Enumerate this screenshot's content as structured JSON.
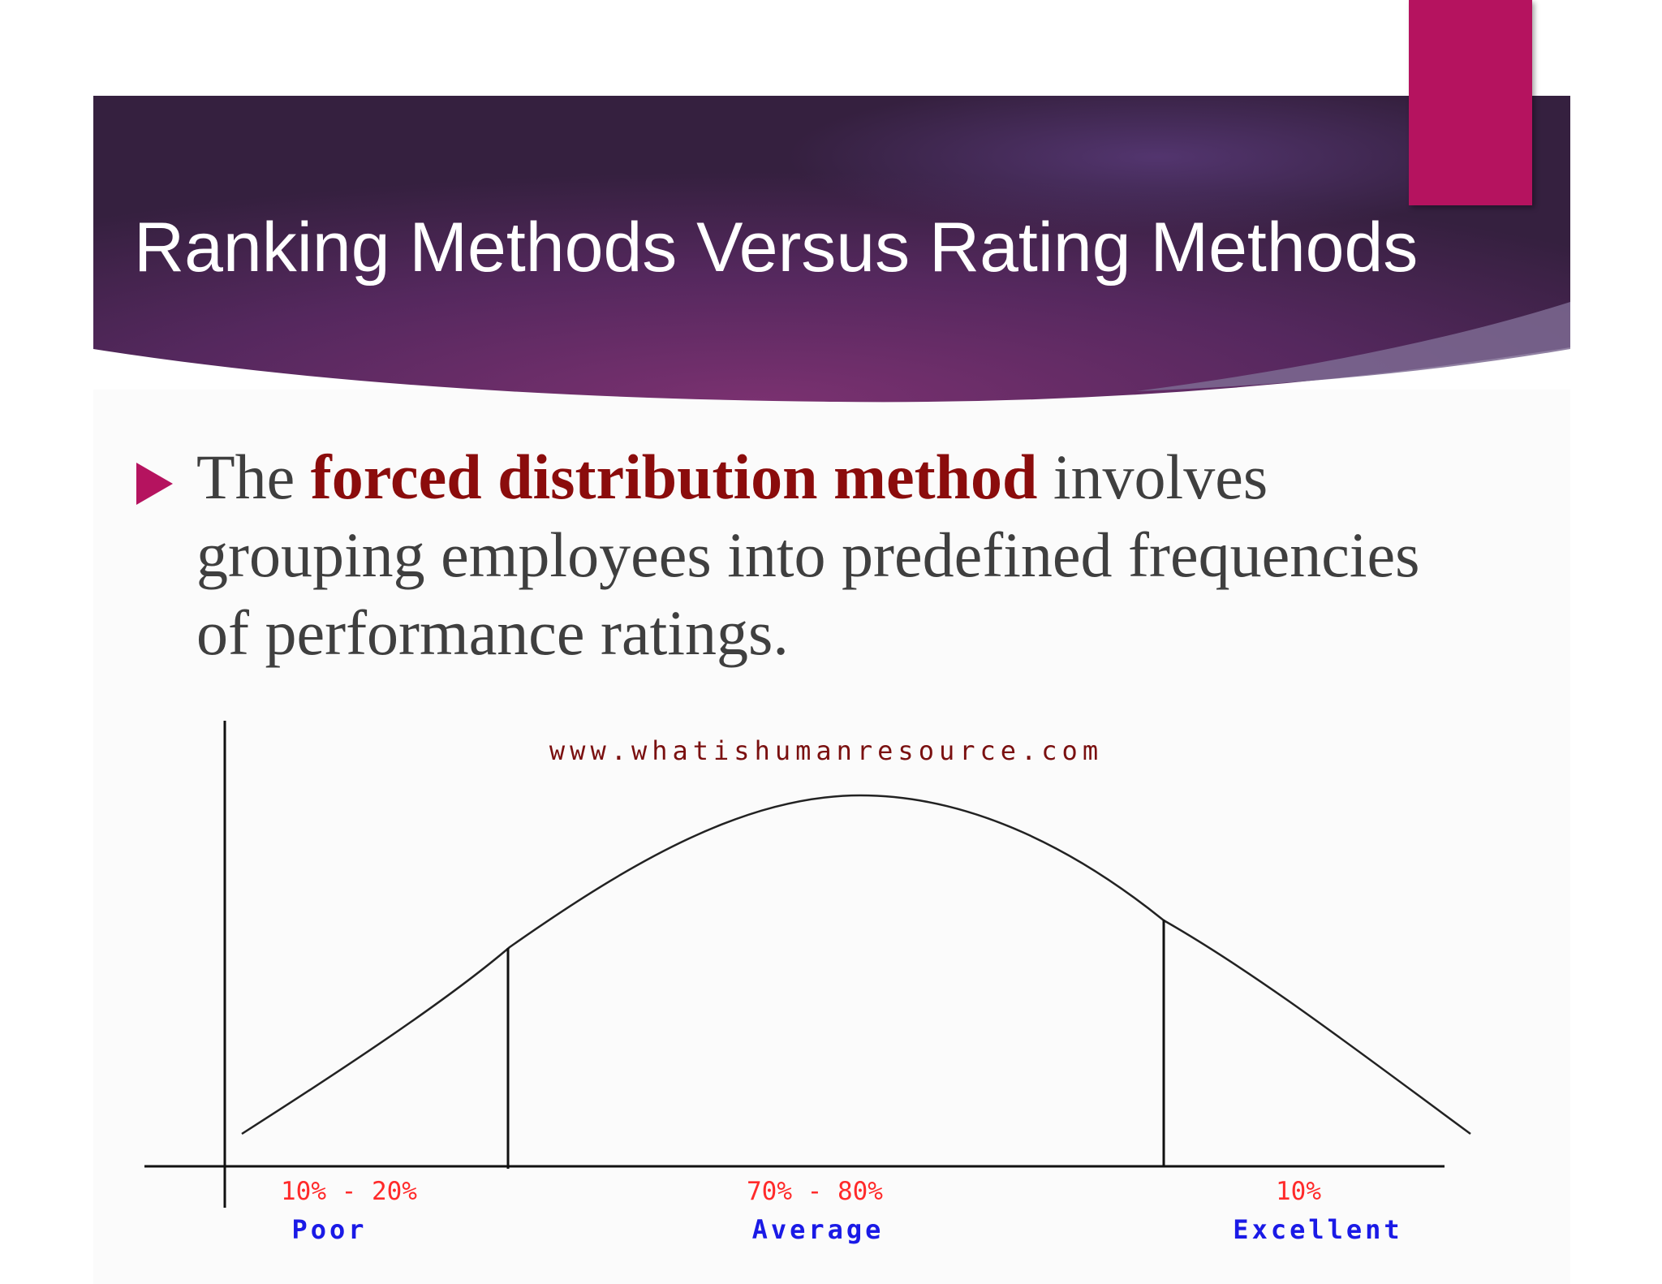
{
  "slide": {
    "title": "Ranking Methods Versus Rating Methods",
    "colors": {
      "banner_dark": "#3a2247",
      "banner_mid": "#6b2f63",
      "accent": "#b5135f",
      "emphasis": "#8b0c0c",
      "body_text": "#3f3f3f"
    }
  },
  "bullet": {
    "icon": "triangle-bullet-icon",
    "text_before": "The ",
    "key_term": "forced distribution method",
    "text_after": " involves grouping employees into predefined frequencies of performance ratings."
  },
  "diagram": {
    "type": "bell-curve",
    "watermark": "www.whatishumanresource.com",
    "segments": [
      {
        "range": "10% - 20%",
        "label": "Poor"
      },
      {
        "range": "70% - 80%",
        "label": "Average"
      },
      {
        "range": "10%",
        "label": "Excellent"
      }
    ],
    "colors": {
      "curve": "#222222",
      "range_text": "#ff2a2a",
      "label_text": "#1a1ae6",
      "watermark": "#7a1010"
    }
  }
}
